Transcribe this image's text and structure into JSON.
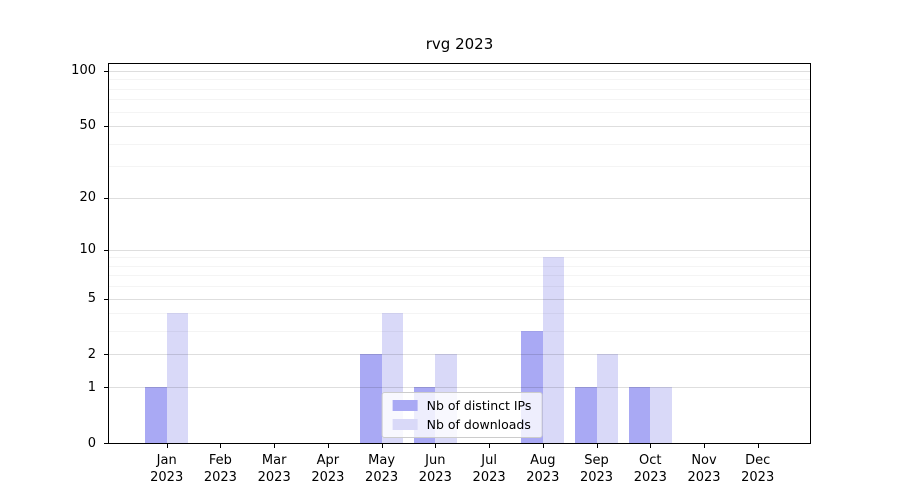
{
  "title": "rvg 2023",
  "legend": {
    "items": [
      {
        "label": "Nb of distinct IPs",
        "color": "#a9a9f4"
      },
      {
        "label": "Nb of downloads",
        "color": "#d9d9f8"
      }
    ]
  },
  "colors": {
    "series_dark": "#a9a9f4",
    "series_light": "#d9d9f8",
    "axis": "#000000",
    "grid_major": "#dcdcdc",
    "grid_minor": "#f0f0f0",
    "background": "#ffffff"
  },
  "chart_data": {
    "type": "bar",
    "title": "rvg 2023",
    "categories": [
      "Jan",
      "Feb",
      "Mar",
      "Apr",
      "May",
      "Jun",
      "Jul",
      "Aug",
      "Sep",
      "Oct",
      "Nov",
      "Dec"
    ],
    "year": "2023",
    "series": [
      {
        "name": "Nb of distinct IPs",
        "color": "#a9a9f4",
        "values": [
          1,
          0,
          0,
          0,
          2,
          1,
          0,
          3,
          1,
          1,
          0,
          0
        ]
      },
      {
        "name": "Nb of downloads",
        "color": "#d9d9f8",
        "values": [
          4,
          0,
          0,
          0,
          4,
          2,
          0,
          9,
          2,
          1,
          0,
          0
        ]
      }
    ],
    "xlabel": "",
    "ylabel": "",
    "y_scale": "log1p",
    "y_ticks": [
      0,
      1,
      2,
      5,
      10,
      20,
      50,
      100
    ],
    "y_minor_gridlines": [
      3,
      4,
      6,
      7,
      8,
      9,
      30,
      40,
      60,
      70,
      80,
      90
    ],
    "ylim": [
      0,
      110
    ],
    "grid": true,
    "legend_position": "lower center"
  }
}
